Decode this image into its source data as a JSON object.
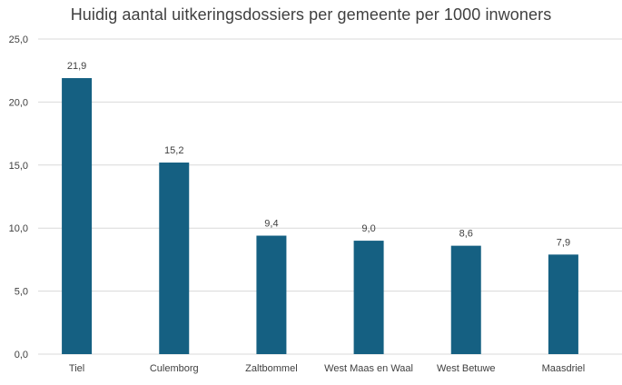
{
  "chart_data": {
    "type": "bar",
    "title": "Huidig aantal uitkeringsdossiers per gemeente per 1000 inwoners",
    "categories": [
      "Tiel",
      "Culemborg",
      "Zaltbommel",
      "West Maas en Waal",
      "West Betuwe",
      "Maasdriel"
    ],
    "values": [
      21.9,
      15.2,
      9.4,
      9.0,
      8.6,
      7.9
    ],
    "data_labels": [
      "21,9",
      "15,2",
      "9,4",
      "9,0",
      "8,6",
      "7,9"
    ],
    "y_ticks": [
      0,
      5,
      10,
      15,
      20,
      25
    ],
    "y_tick_labels": [
      "0,0",
      "5,0",
      "10,0",
      "15,0",
      "20,0",
      "25,0"
    ],
    "ylim": [
      0,
      25
    ],
    "xlabel": "",
    "ylabel": "",
    "grid": true,
    "legend": "none",
    "colors": {
      "bar": "#156082",
      "grid": "#d9d9d9",
      "text": "#404040"
    }
  }
}
